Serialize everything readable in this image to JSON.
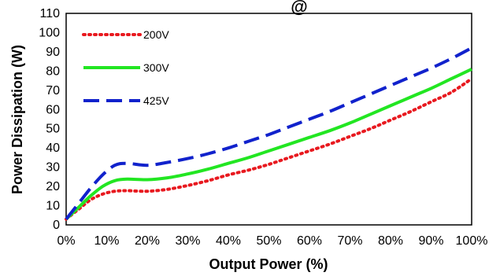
{
  "chart_data": {
    "type": "line",
    "title_fragment": "@",
    "xlabel": "Output Power (%)",
    "ylabel": "Power Dissipation (W)",
    "xlim": [
      0,
      100
    ],
    "ylim": [
      0,
      110
    ],
    "x_ticks": [
      0,
      10,
      20,
      30,
      40,
      50,
      60,
      70,
      80,
      90,
      100
    ],
    "x_tick_labels": [
      "0%",
      "10%",
      "20%",
      "30%",
      "40%",
      "50%",
      "60%",
      "70%",
      "80%",
      "90%",
      "100%"
    ],
    "y_ticks": [
      0,
      10,
      20,
      30,
      40,
      50,
      60,
      70,
      80,
      90,
      100,
      110
    ],
    "y_tick_labels": [
      "0",
      "10",
      "20",
      "30",
      "40",
      "50",
      "60",
      "70",
      "80",
      "90",
      "100",
      "110"
    ],
    "grid": false,
    "legend_position": "top-left",
    "series": [
      {
        "name": "200V",
        "color": "#e8191f",
        "style": "dotted",
        "x": [
          0,
          3,
          6,
          9,
          12,
          15,
          20,
          25,
          30,
          35,
          40,
          45,
          50,
          55,
          60,
          65,
          70,
          75,
          80,
          85,
          90,
          95,
          100
        ],
        "y": [
          3,
          8,
          13,
          16,
          17.5,
          17.8,
          17.5,
          18.5,
          20.5,
          23,
          26,
          28.5,
          31.5,
          35,
          38.5,
          42,
          46,
          50,
          54.5,
          59,
          64,
          69,
          76
        ]
      },
      {
        "name": "300V",
        "color": "#22e622",
        "style": "solid",
        "x": [
          0,
          3,
          6,
          9,
          12,
          15,
          20,
          25,
          30,
          35,
          40,
          45,
          50,
          55,
          60,
          65,
          70,
          75,
          80,
          85,
          90,
          95,
          100
        ],
        "y": [
          3,
          9,
          15,
          20,
          23,
          23.8,
          23.5,
          24.5,
          26.5,
          29,
          32,
          35,
          38.5,
          42,
          45.5,
          49,
          53,
          57.5,
          62,
          66.5,
          71,
          76,
          81
        ]
      },
      {
        "name": "425V",
        "color": "#1122cc",
        "style": "dashed",
        "x": [
          0,
          3,
          6,
          9,
          12,
          15,
          20,
          25,
          30,
          35,
          40,
          45,
          50,
          55,
          60,
          65,
          70,
          75,
          80,
          85,
          90,
          95,
          100
        ],
        "y": [
          3,
          11,
          19,
          26,
          31,
          32,
          31,
          32.5,
          34.5,
          37,
          40,
          43.5,
          47,
          51,
          55,
          59,
          63.5,
          68,
          72.5,
          77,
          81.5,
          86.5,
          92
        ]
      }
    ]
  }
}
